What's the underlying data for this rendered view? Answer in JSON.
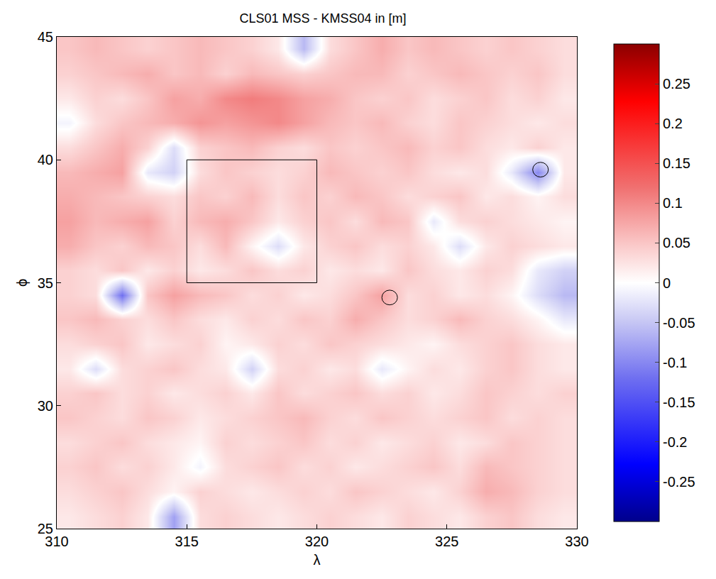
{
  "chart_data": {
    "type": "heatmap",
    "title": "CLS01 MSS - KMSS04 in [m]",
    "xlabel": "λ",
    "ylabel": "ϕ",
    "xlim": [
      310,
      330
    ],
    "ylim": [
      25,
      45
    ],
    "xticks": [
      310,
      315,
      320,
      325,
      330
    ],
    "yticks": [
      25,
      30,
      35,
      40,
      45
    ],
    "zlim": [
      -0.3,
      0.3
    ],
    "zticks": [
      -0.25,
      -0.2,
      -0.15,
      -0.1,
      -0.05,
      0,
      0.05,
      0.1,
      0.15,
      0.2,
      0.25
    ],
    "x": [
      310.5,
      311.5,
      312.5,
      313.5,
      314.5,
      315.5,
      316.5,
      317.5,
      318.5,
      319.5,
      320.5,
      321.5,
      322.5,
      323.5,
      324.5,
      325.5,
      326.5,
      327.5,
      328.5,
      329.5
    ],
    "y": [
      44.5,
      43.5,
      42.5,
      41.5,
      40.5,
      39.5,
      38.5,
      37.5,
      36.5,
      35.5,
      34.5,
      33.5,
      32.5,
      31.5,
      30.5,
      29.5,
      28.5,
      27.5,
      26.5,
      25.5
    ],
    "z": [
      [
        0.05,
        0.06,
        0.05,
        0.04,
        0.05,
        0.06,
        0.05,
        0.04,
        0.02,
        -0.06,
        0.03,
        0.05,
        0.07,
        0.05,
        0.06,
        0.05,
        0.04,
        0.05,
        0.04,
        0.03
      ],
      [
        0.04,
        0.05,
        0.06,
        0.07,
        0.05,
        0.06,
        0.04,
        0.06,
        0.05,
        0.04,
        0.05,
        0.06,
        0.06,
        0.04,
        0.05,
        0.06,
        0.05,
        0.04,
        0.05,
        0.03
      ],
      [
        0.02,
        0.04,
        0.03,
        0.05,
        0.08,
        0.07,
        0.1,
        0.11,
        0.1,
        0.08,
        0.07,
        0.05,
        0.04,
        0.05,
        0.03,
        0.04,
        0.05,
        0.03,
        0.04,
        0.02
      ],
      [
        -0.01,
        0.03,
        0.05,
        0.06,
        0.07,
        0.09,
        0.08,
        0.09,
        0.1,
        0.08,
        0.06,
        0.05,
        0.06,
        0.04,
        0.03,
        0.05,
        0.04,
        0.03,
        0.02,
        0.03
      ],
      [
        0.03,
        0.05,
        0.07,
        0.04,
        -0.03,
        0.04,
        0.05,
        0.06,
        0.04,
        0.03,
        0.05,
        0.04,
        0.05,
        0.06,
        0.04,
        0.05,
        0.03,
        0.02,
        0.04,
        0.02
      ],
      [
        0.06,
        0.07,
        0.08,
        -0.02,
        -0.04,
        0.03,
        0.05,
        0.04,
        0.03,
        0.04,
        0.06,
        0.05,
        0.04,
        0.05,
        0.03,
        0.02,
        0.03,
        -0.02,
        -0.1,
        0.02
      ],
      [
        0.07,
        0.06,
        0.05,
        0.04,
        0.03,
        0.05,
        0.04,
        0.06,
        0.03,
        0.05,
        0.04,
        0.06,
        0.05,
        0.03,
        0.04,
        0.05,
        0.02,
        0.03,
        0.01,
        0.03
      ],
      [
        0.08,
        0.06,
        0.07,
        0.08,
        0.04,
        0.06,
        0.07,
        0.05,
        0.02,
        0.04,
        0.05,
        0.03,
        0.06,
        0.05,
        -0.02,
        0.03,
        0.04,
        0.03,
        0.02,
        0.01
      ],
      [
        0.07,
        0.05,
        0.04,
        0.06,
        0.05,
        0.03,
        0.06,
        0.01,
        -0.03,
        0.02,
        0.04,
        0.05,
        0.03,
        0.04,
        0.02,
        -0.03,
        0.02,
        0.04,
        0.03,
        0.02
      ],
      [
        0.04,
        0.03,
        0.05,
        0.02,
        0.04,
        0.02,
        0.03,
        0.05,
        0.03,
        0.04,
        0.02,
        0.03,
        0.02,
        0.05,
        0.03,
        0.02,
        0.04,
        0.03,
        -0.02,
        -0.04
      ],
      [
        0.04,
        0.03,
        -0.12,
        0.05,
        0.08,
        0.06,
        0.05,
        0.03,
        0.04,
        0.02,
        0.03,
        0.05,
        0.08,
        0.03,
        0.04,
        0.02,
        0.03,
        0.01,
        -0.03,
        -0.06
      ],
      [
        0.05,
        0.06,
        0.04,
        0.03,
        0.05,
        0.03,
        0.02,
        0.04,
        0.03,
        0.05,
        0.04,
        0.07,
        0.05,
        0.03,
        0.04,
        0.06,
        0.04,
        0.03,
        0.01,
        -0.02
      ],
      [
        0.03,
        0.04,
        0.05,
        0.02,
        0.03,
        0.04,
        0.01,
        0.02,
        0.04,
        0.03,
        0.05,
        0.04,
        0.03,
        0.02,
        0.01,
        0.03,
        0.04,
        0.05,
        0.03,
        0.02
      ],
      [
        0.02,
        -0.03,
        0.03,
        0.04,
        0.05,
        0.03,
        0.02,
        -0.04,
        0.03,
        0.04,
        0.02,
        0.03,
        -0.02,
        0.01,
        0.03,
        0.02,
        0.04,
        0.05,
        0.03,
        0.02
      ],
      [
        0.04,
        0.05,
        0.03,
        0.04,
        0.02,
        0.03,
        0.04,
        0.02,
        0.05,
        0.03,
        0.04,
        0.05,
        0.03,
        0.04,
        0.02,
        0.03,
        0.05,
        0.04,
        0.03,
        0.04
      ],
      [
        0.05,
        0.04,
        0.03,
        0.05,
        0.04,
        0.02,
        0.03,
        0.04,
        0.05,
        0.06,
        0.04,
        0.03,
        0.05,
        0.04,
        0.03,
        0.04,
        0.05,
        0.03,
        0.04,
        0.03
      ],
      [
        0.03,
        0.04,
        0.05,
        0.03,
        0.02,
        0.01,
        0.04,
        0.03,
        0.04,
        0.05,
        0.03,
        0.04,
        0.02,
        0.03,
        0.04,
        0.02,
        0.03,
        0.05,
        0.04,
        0.03
      ],
      [
        0.04,
        0.05,
        0.03,
        0.04,
        0.02,
        -0.01,
        0.03,
        0.04,
        0.05,
        0.03,
        0.04,
        0.02,
        0.03,
        0.04,
        0.05,
        0.03,
        0.06,
        0.05,
        0.04,
        0.03
      ],
      [
        0.03,
        0.04,
        0.05,
        0.03,
        0.01,
        0.04,
        0.03,
        0.02,
        0.03,
        0.04,
        0.03,
        0.05,
        0.04,
        0.03,
        0.02,
        0.04,
        0.07,
        0.06,
        0.04,
        0.03
      ],
      [
        0.02,
        0.03,
        0.04,
        0.02,
        -0.08,
        0.03,
        0.04,
        0.03,
        0.02,
        0.03,
        0.04,
        0.03,
        0.02,
        0.04,
        0.03,
        0.02,
        0.04,
        0.05,
        0.03,
        0.02
      ]
    ],
    "box": {
      "xlim": [
        315,
        320
      ],
      "ylim": [
        35,
        40
      ]
    },
    "circles": [
      {
        "x": 322.8,
        "y": 34.4,
        "r": 0.3
      },
      {
        "x": 328.6,
        "y": 39.6,
        "r": 0.3
      }
    ]
  }
}
